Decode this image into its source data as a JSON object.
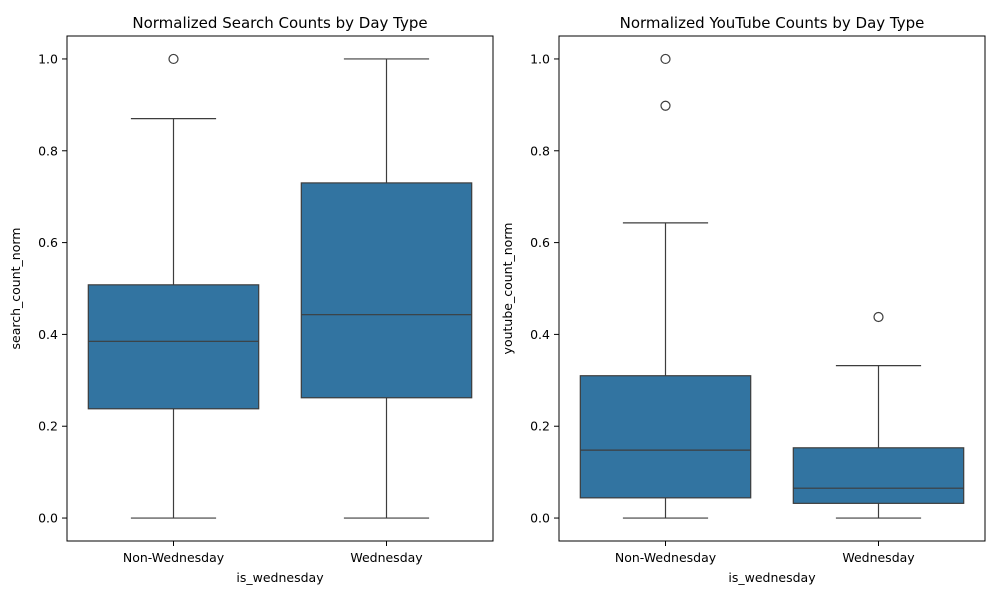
{
  "chart_data": [
    {
      "type": "box",
      "title": "Normalized Search Counts by Day Type",
      "xlabel": "is_wednesday",
      "ylabel": "search_count_norm",
      "categories": [
        "Non-Wednesday",
        "Wednesday"
      ],
      "ylim": [
        -0.05,
        1.05
      ],
      "yticks": [
        "0.0",
        "0.2",
        "0.4",
        "0.6",
        "0.8",
        "1.0"
      ],
      "box_color": "#3274a1",
      "boxes": [
        {
          "whisker_low": 0.0,
          "q1": 0.238,
          "median": 0.385,
          "q3": 0.508,
          "whisker_high": 0.87,
          "outliers": [
            1.0
          ]
        },
        {
          "whisker_low": 0.0,
          "q1": 0.262,
          "median": 0.443,
          "q3": 0.73,
          "whisker_high": 1.0,
          "outliers": []
        }
      ]
    },
    {
      "type": "box",
      "title": "Normalized YouTube Counts by Day Type",
      "xlabel": "is_wednesday",
      "ylabel": "youtube_count_norm",
      "categories": [
        "Non-Wednesday",
        "Wednesday"
      ],
      "ylim": [
        -0.05,
        1.05
      ],
      "yticks": [
        "0.0",
        "0.2",
        "0.4",
        "0.6",
        "0.8",
        "1.0"
      ],
      "box_color": "#3274a1",
      "boxes": [
        {
          "whisker_low": 0.0,
          "q1": 0.044,
          "median": 0.148,
          "q3": 0.31,
          "whisker_high": 0.643,
          "outliers": [
            0.898,
            1.0
          ]
        },
        {
          "whisker_low": 0.0,
          "q1": 0.032,
          "median": 0.065,
          "q3": 0.153,
          "whisker_high": 0.332,
          "outliers": [
            0.438
          ]
        }
      ]
    }
  ]
}
